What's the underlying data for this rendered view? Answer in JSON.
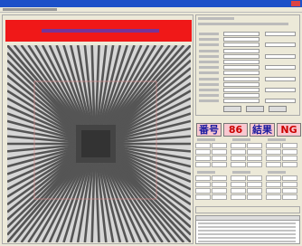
{
  "result": {
    "number_label": "番号",
    "number": 86,
    "result_label": "結果",
    "result": "NG"
  }
}
